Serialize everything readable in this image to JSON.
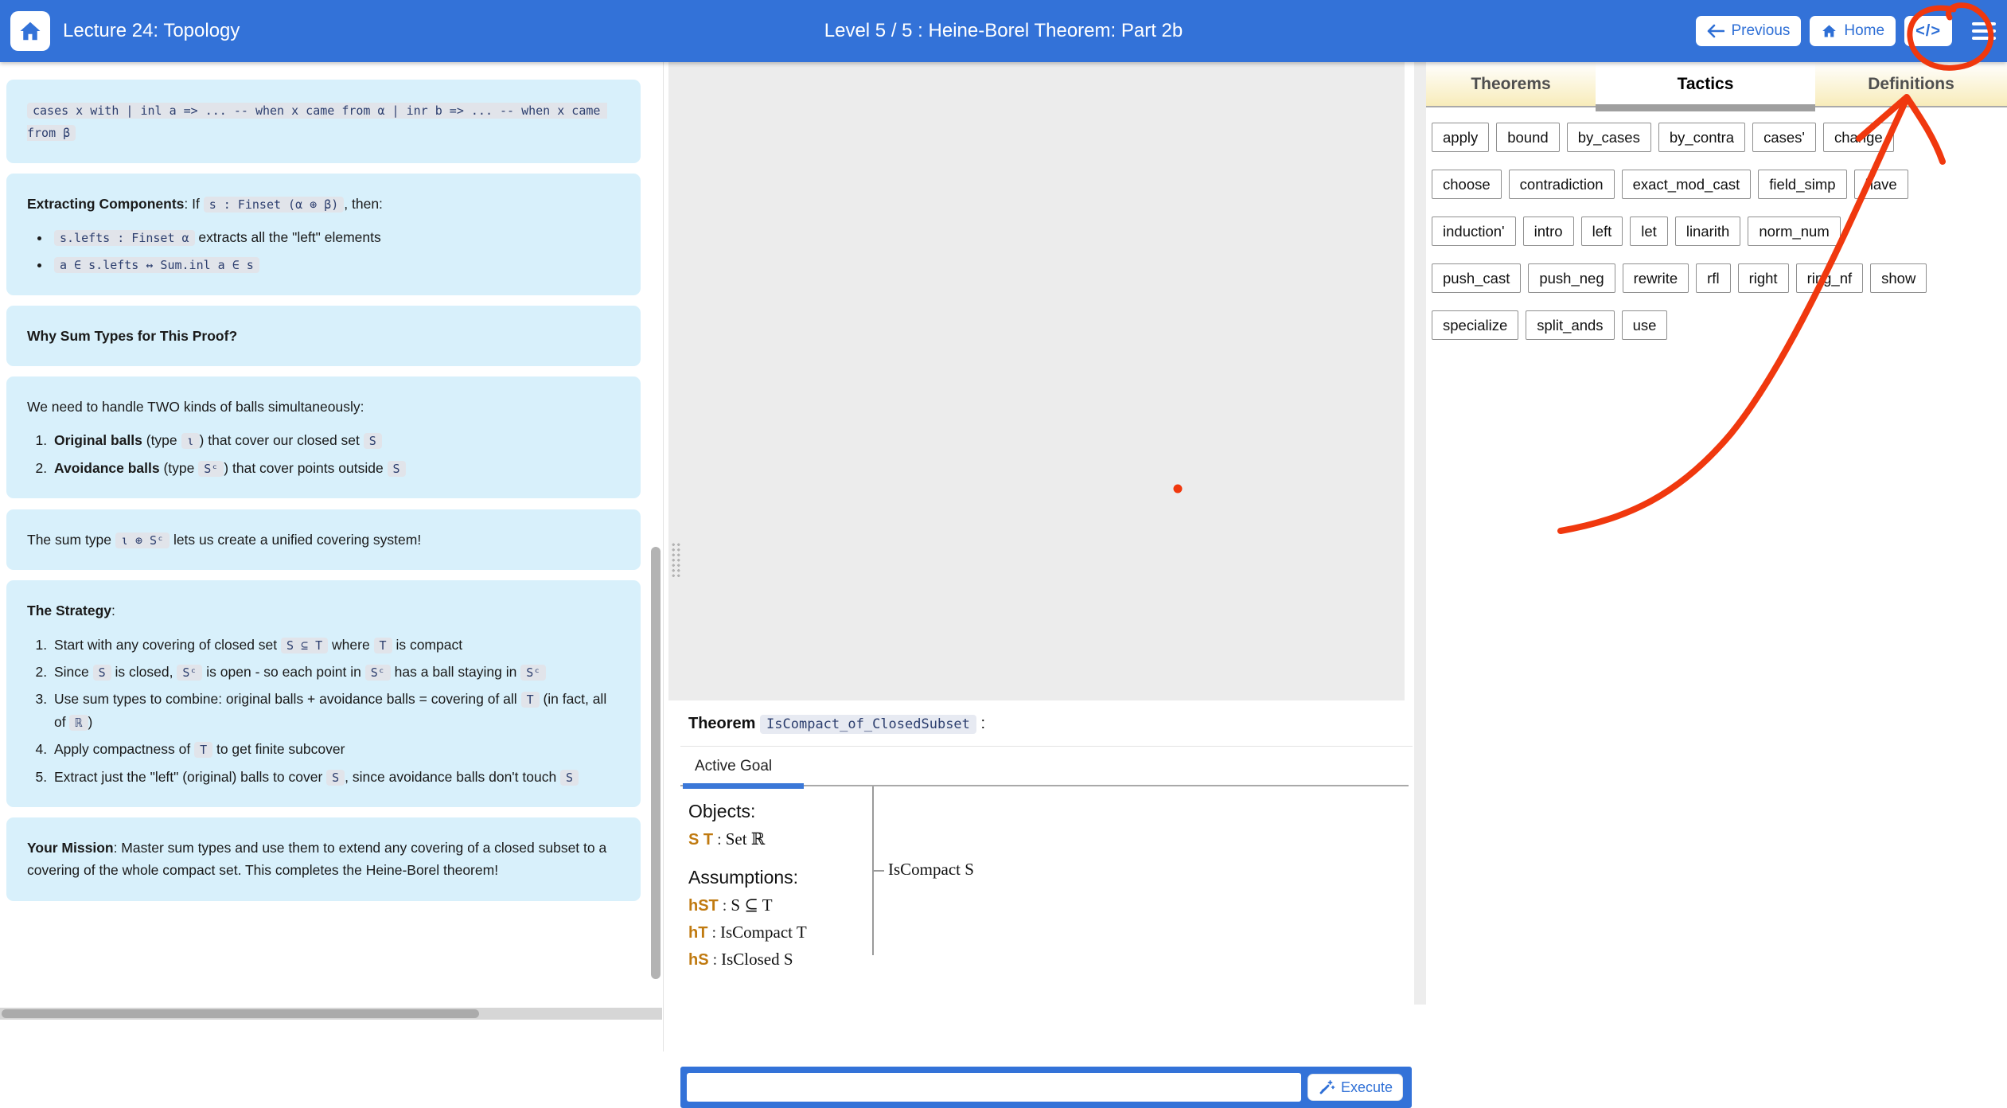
{
  "header": {
    "lecture_title": "Lecture 24: Topology",
    "level_title": "Level 5 / 5 : Heine-Borel Theorem: Part 2b",
    "previous_label": "Previous",
    "home_label": "Home",
    "code_button_label": "</>"
  },
  "left_panel": {
    "boxes": [
      {
        "blocks": [
          {
            "type": "p",
            "segments": [
              [
                "c",
                "cases x with | inl a => ... -- when x came from α | inr b => ... -- when x came from β"
              ]
            ]
          }
        ]
      },
      {
        "blocks": [
          {
            "type": "p",
            "segments": [
              [
                "b",
                "Extracting Components"
              ],
              [
                "t",
                ": If "
              ],
              [
                "c",
                "s : Finset (α ⊕ β)"
              ],
              [
                "t",
                ", then:"
              ]
            ]
          },
          {
            "type": "ul",
            "items": [
              [
                [
                  "c",
                  "s.lefts : Finset α"
                ],
                [
                  "t",
                  " extracts all the \"left\" elements"
                ]
              ],
              [
                [
                  "c",
                  "a ∈ s.lefts ↔ Sum.inl a ∈ s"
                ]
              ]
            ]
          }
        ]
      },
      {
        "blocks": [
          {
            "type": "p",
            "segments": [
              [
                "b",
                "Why Sum Types for This Proof?"
              ]
            ]
          }
        ]
      },
      {
        "blocks": [
          {
            "type": "p",
            "segments": [
              [
                "t",
                "We need to handle TWO kinds of balls simultaneously:"
              ]
            ]
          },
          {
            "type": "ol",
            "items": [
              [
                [
                  "b",
                  "Original balls"
                ],
                [
                  "t",
                  " (type "
                ],
                [
                  "c",
                  "ι"
                ],
                [
                  "t",
                  ") that cover our closed set "
                ],
                [
                  "c",
                  "S"
                ]
              ],
              [
                [
                  "b",
                  "Avoidance balls"
                ],
                [
                  "t",
                  " (type "
                ],
                [
                  "c",
                  "Sᶜ"
                ],
                [
                  "t",
                  ") that cover points outside "
                ],
                [
                  "c",
                  "S"
                ]
              ]
            ]
          }
        ],
        "gap_lg": true
      },
      {
        "blocks": [
          {
            "type": "p",
            "segments": [
              [
                "t",
                "The sum type "
              ],
              [
                "c",
                "ι ⊕ Sᶜ"
              ],
              [
                "t",
                " lets us create a unified covering system!"
              ]
            ]
          }
        ]
      },
      {
        "blocks": [
          {
            "type": "p",
            "segments": [
              [
                "b",
                "The Strategy"
              ],
              [
                "t",
                ":"
              ]
            ]
          },
          {
            "type": "ol",
            "items": [
              [
                [
                  "t",
                  "Start with any covering of closed set "
                ],
                [
                  "c",
                  "S ⊆ T"
                ],
                [
                  "t",
                  " where "
                ],
                [
                  "c",
                  "T"
                ],
                [
                  "t",
                  " is compact"
                ]
              ],
              [
                [
                  "t",
                  "Since "
                ],
                [
                  "c",
                  "S"
                ],
                [
                  "t",
                  " is closed, "
                ],
                [
                  "c",
                  "Sᶜ"
                ],
                [
                  "t",
                  " is open - so each point in "
                ],
                [
                  "c",
                  "Sᶜ"
                ],
                [
                  "t",
                  " has a ball staying in "
                ],
                [
                  "c",
                  "Sᶜ"
                ]
              ],
              [
                [
                  "t",
                  "Use sum types to combine: original balls + avoidance balls = covering of all "
                ],
                [
                  "c",
                  "T"
                ],
                [
                  "t",
                  " (in fact, all of "
                ],
                [
                  "c",
                  "ℝ"
                ],
                [
                  "t",
                  ")"
                ]
              ],
              [
                [
                  "t",
                  "Apply compactness of "
                ],
                [
                  "c",
                  "T"
                ],
                [
                  "t",
                  " to get finite subcover"
                ]
              ],
              [
                [
                  "t",
                  "Extract just the \"left\" (original) balls to cover "
                ],
                [
                  "c",
                  "S"
                ],
                [
                  "t",
                  ", since avoidance balls don't touch "
                ],
                [
                  "c",
                  "S"
                ]
              ]
            ]
          }
        ]
      },
      {
        "blocks": [
          {
            "type": "p",
            "segments": [
              [
                "b",
                "Your Mission"
              ],
              [
                "t",
                ": Master sum types and use them to extend any covering of a closed subset to a covering of the whole compact set. This completes the Heine-Borel theorem!"
              ]
            ]
          }
        ]
      }
    ]
  },
  "middle": {
    "theorem_label": "Theorem",
    "theorem_name": "IsCompact_of_ClosedSubset",
    "theorem_colon": ":",
    "active_goal_tab": "Active Goal",
    "objects_label": "Objects:",
    "objects": [
      {
        "name": "S T",
        "type": "Set ℝ"
      }
    ],
    "assumptions_label": "Assumptions:",
    "assumptions": [
      {
        "name": "hST",
        "type": "S ⊆ T"
      },
      {
        "name": "hT",
        "type": "IsCompact T"
      },
      {
        "name": "hS",
        "type": "IsClosed S"
      }
    ],
    "goal": "IsCompact S",
    "execute_label": "Execute"
  },
  "right_panel": {
    "tabs": [
      {
        "label": "Theorems",
        "active": false
      },
      {
        "label": "Tactics",
        "active": true
      },
      {
        "label": "Definitions",
        "active": false
      }
    ],
    "tactics": [
      "apply",
      "bound",
      "by_cases",
      "by_contra",
      "cases'",
      "change",
      "choose",
      "contradiction",
      "exact_mod_cast",
      "field_simp",
      "have",
      "induction'",
      "intro",
      "left",
      "let",
      "linarith",
      "norm_num",
      "push_cast",
      "push_neg",
      "rewrite",
      "rfl",
      "right",
      "ring_nf",
      "show",
      "specialize",
      "split_ands",
      "use"
    ]
  },
  "colors": {
    "header_blue": "#3372d8",
    "message_blue": "#d8f0fb",
    "annotation_red": "#f0380e",
    "hypothesis_orange": "#c07a10"
  }
}
